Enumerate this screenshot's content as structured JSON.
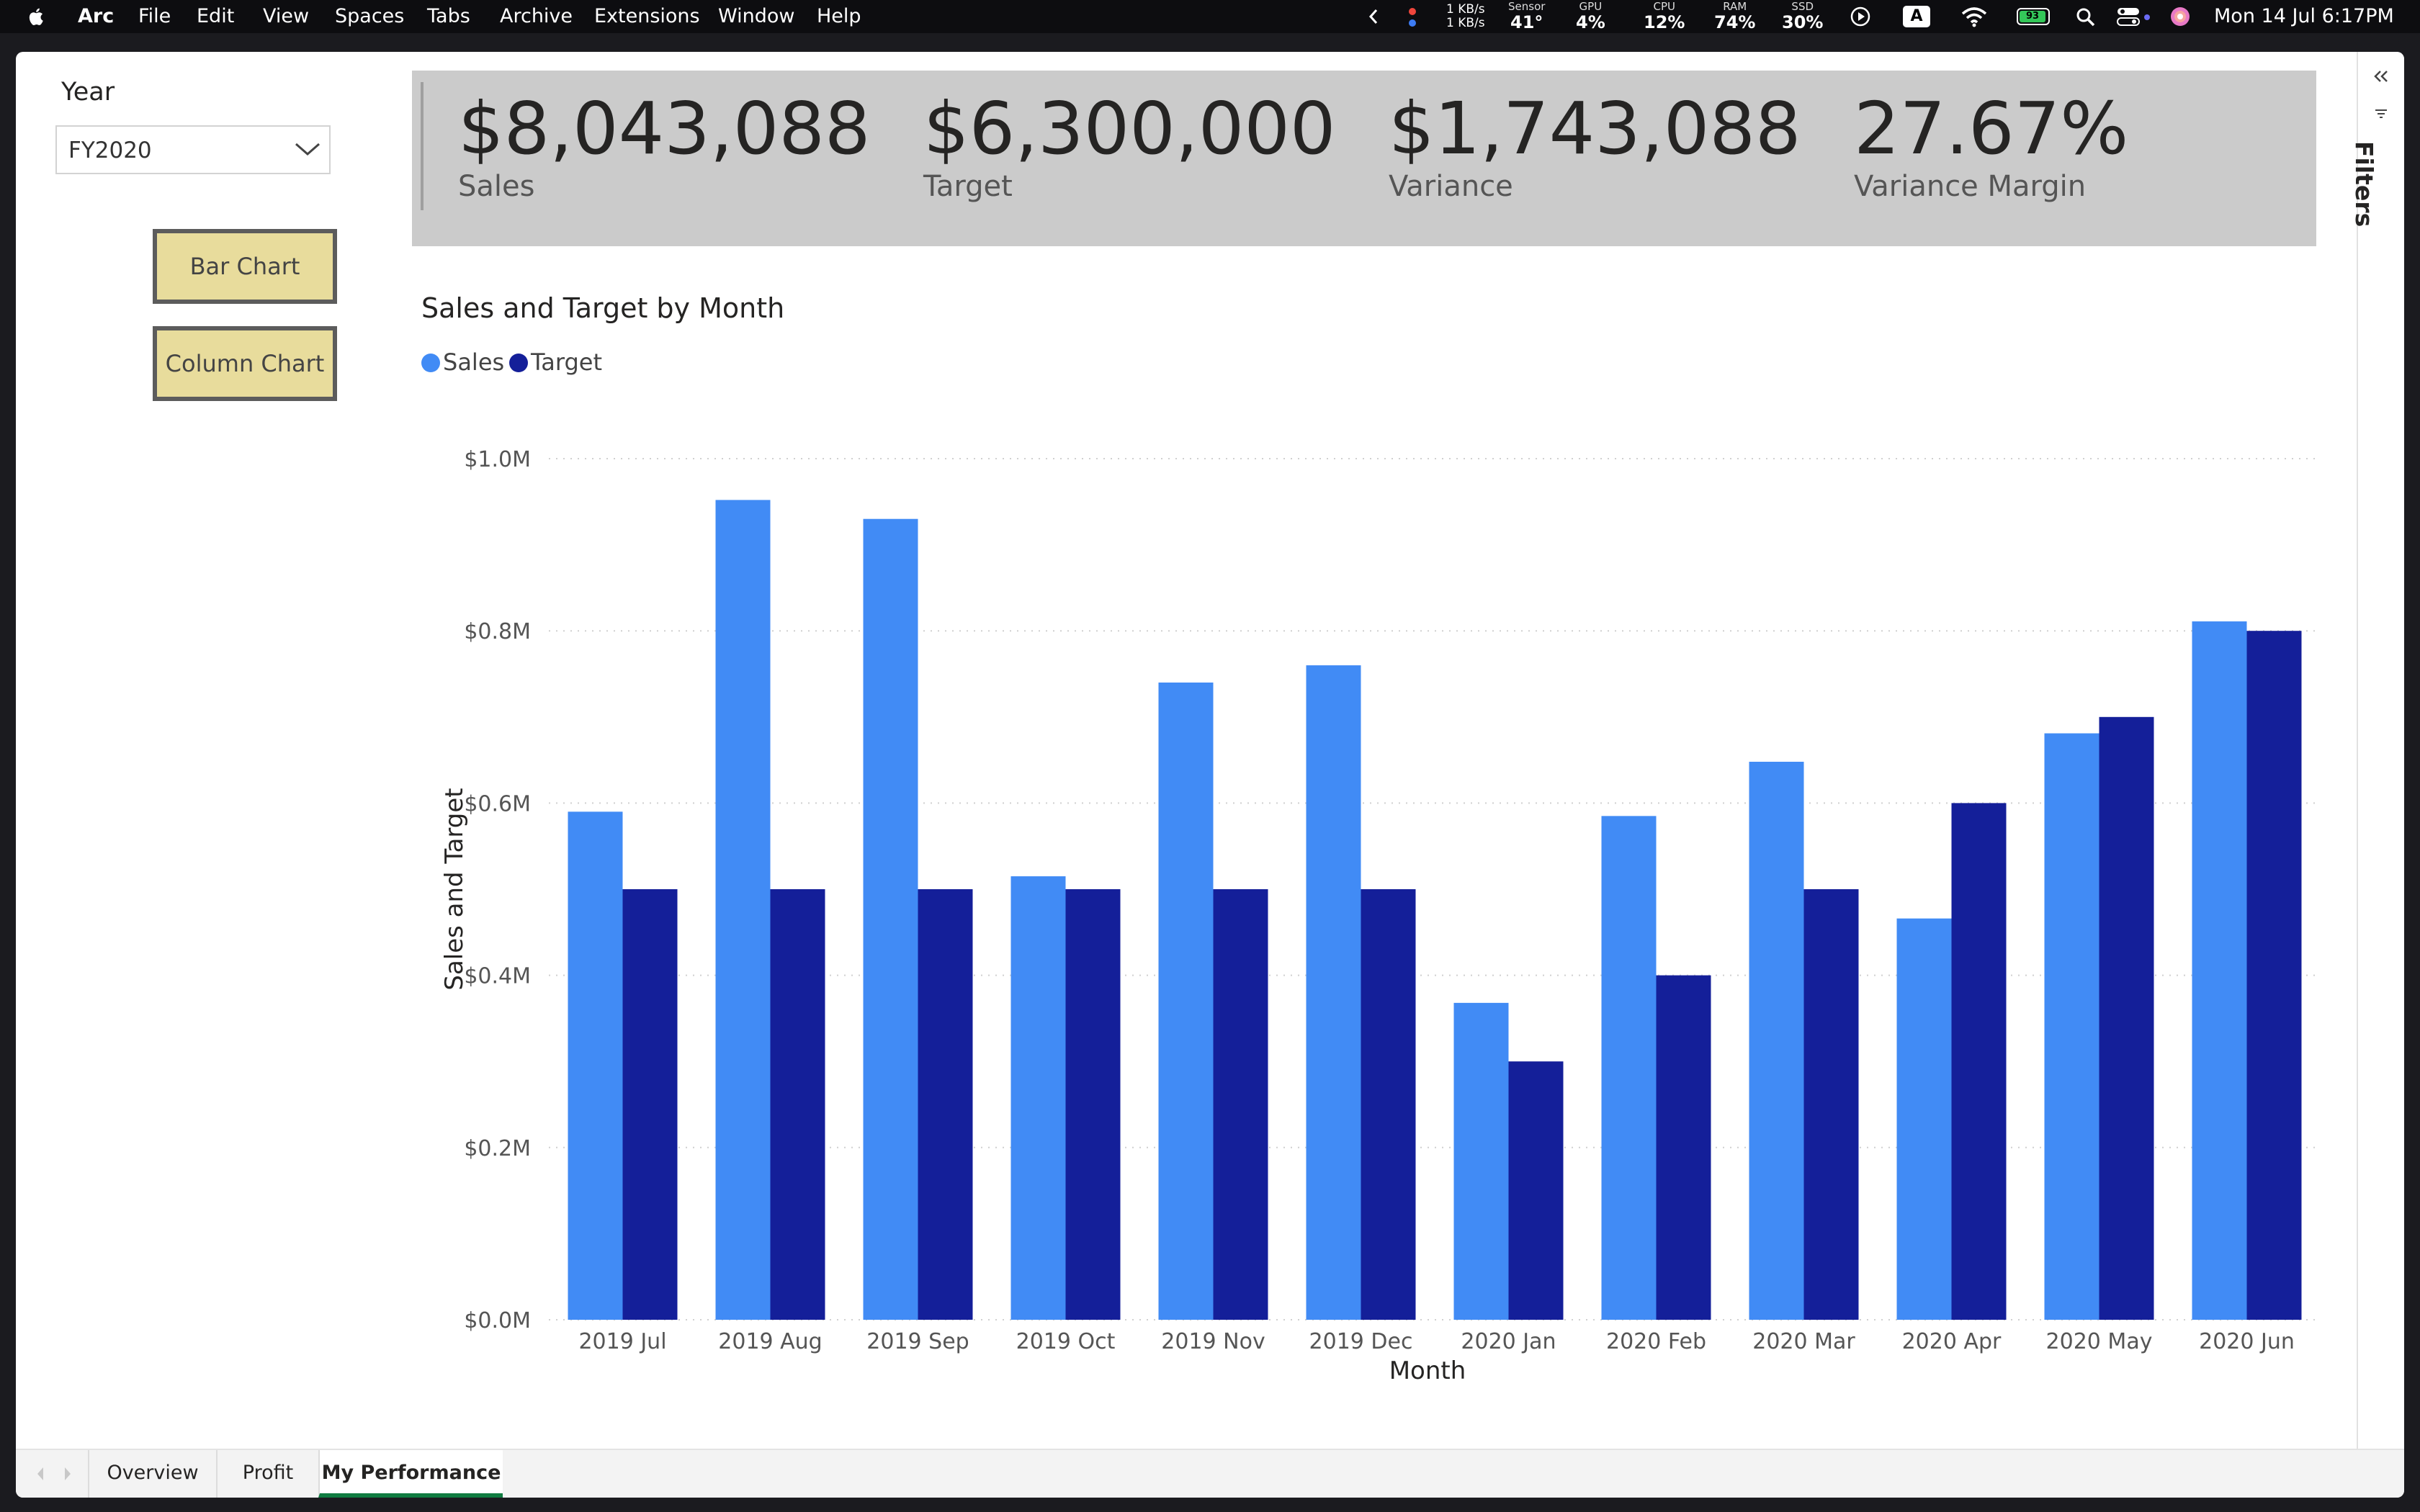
{
  "menubar": {
    "app": "Arc",
    "items": [
      "File",
      "Edit",
      "View",
      "Spaces",
      "Tabs",
      "Archive",
      "Extensions",
      "Window",
      "Help"
    ],
    "network_up": "1 KB/s",
    "network_down": "1 KB/s",
    "sensor_label": "Sensor",
    "sensor_value": "41°",
    "gpu_label": "GPU",
    "gpu_value": "4%",
    "cpu_label": "CPU",
    "cpu_value": "12%",
    "ram_label": "RAM",
    "ram_value": "74%",
    "ssd_label": "SSD",
    "ssd_value": "30%",
    "input_source": "A",
    "battery": "93",
    "datetime": "Mon 14 Jul  6:17PM"
  },
  "slicer": {
    "label": "Year",
    "value": "FY2020"
  },
  "buttons": {
    "bar_chart": "Bar Chart",
    "column_chart": "Column Chart"
  },
  "kpis": [
    {
      "value": "$8,043,088",
      "label": "Sales"
    },
    {
      "value": "$6,300,000",
      "label": "Target"
    },
    {
      "value": "$1,743,088",
      "label": "Variance"
    },
    {
      "value": "27.67%",
      "label": "Variance Margin"
    }
  ],
  "filters_label": "Filters",
  "tabs": [
    {
      "label": "Overview"
    },
    {
      "label": "Profit"
    },
    {
      "label": "My Performance"
    }
  ],
  "colors": {
    "sales": "#418bf5",
    "target": "#141f99"
  },
  "chart_data": {
    "type": "bar",
    "title": "Sales and Target by Month",
    "xlabel": "Month",
    "ylabel": "Sales and Target",
    "categories": [
      "2019 Jul",
      "2019 Aug",
      "2019 Sep",
      "2019 Oct",
      "2019 Nov",
      "2019 Dec",
      "2020 Jan",
      "2020 Feb",
      "2020 Mar",
      "2020 Apr",
      "2020 May",
      "2020 Jun"
    ],
    "series": [
      {
        "name": "Sales",
        "values": [
          590000,
          952000,
          930000,
          515000,
          740000,
          760000,
          368000,
          585000,
          648000,
          466000,
          681000,
          811000
        ]
      },
      {
        "name": "Target",
        "values": [
          500000,
          500000,
          500000,
          500000,
          500000,
          500000,
          300000,
          400000,
          500000,
          600000,
          700000,
          800000
        ]
      }
    ],
    "ylim": [
      0,
      1000000
    ],
    "yticks": [
      "$0.0M",
      "$0.2M",
      "$0.4M",
      "$0.6M",
      "$0.8M",
      "$1.0M"
    ],
    "legend": "top-left",
    "grid": true
  }
}
